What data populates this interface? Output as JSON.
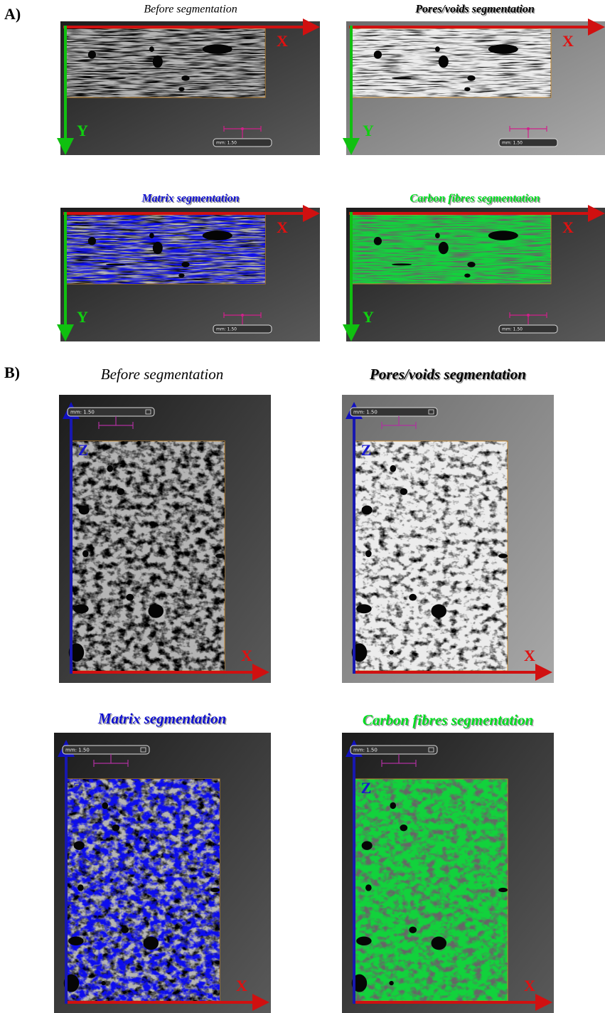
{
  "panels": [
    {
      "label": "A)",
      "images": [
        {
          "title": "Before segmentation",
          "axes": [
            "X",
            "Y"
          ],
          "scale": "mm: 1.50"
        },
        {
          "title": "Pores/voids segmentation",
          "axes": [
            "X",
            "Y"
          ],
          "scale": "mm: 1.50"
        },
        {
          "title": "Matrix segmentation",
          "axes": [
            "X",
            "Y"
          ],
          "scale": "mm: 1.50"
        },
        {
          "title": "Carbon fibres segmentation",
          "axes": [
            "X",
            "Y"
          ],
          "scale": "mm: 1.50"
        }
      ]
    },
    {
      "label": "B)",
      "images": [
        {
          "title": "Before segmentation",
          "axes": [
            "X",
            "Z"
          ],
          "scale": "mm: 1.50"
        },
        {
          "title": "Pores/voids segmentation",
          "axes": [
            "X",
            "Z"
          ],
          "scale": "mm: 1.50"
        },
        {
          "title": "Matrix segmentation",
          "axes": [
            "X",
            "Z"
          ],
          "scale": "mm: 1.50"
        },
        {
          "title": "Carbon fibres segmentation",
          "axes": [
            "X",
            "Z"
          ],
          "scale": "mm: 1.50"
        }
      ]
    }
  ]
}
